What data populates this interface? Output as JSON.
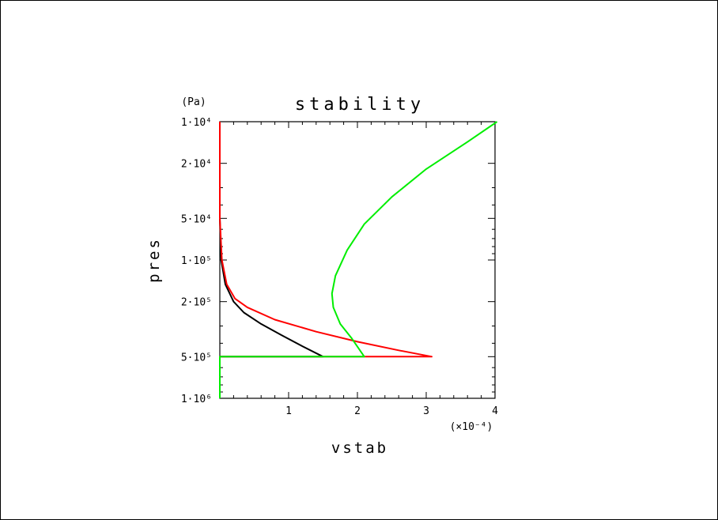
{
  "chart_data": {
    "type": "line",
    "title": "stability",
    "xlabel": "vstab",
    "ylabel": "pres",
    "y_unit_label": "(Pa)",
    "x_scale_label": "(×10⁻⁴)",
    "x_scale_multiplier": 0.0001,
    "xlim": [
      0,
      4
    ],
    "ylim": [
      1000000,
      10000
    ],
    "y_scale": "log",
    "y_inverted": true,
    "grid": false,
    "x_ticks": [
      {
        "value": 1,
        "label": "1"
      },
      {
        "value": 2,
        "label": "2"
      },
      {
        "value": 3,
        "label": "3"
      },
      {
        "value": 4,
        "label": "4"
      }
    ],
    "y_ticks": [
      {
        "value": 10000,
        "label": "1·10⁴"
      },
      {
        "value": 20000,
        "label": "2·10⁴"
      },
      {
        "value": 50000,
        "label": "5·10⁴"
      },
      {
        "value": 100000,
        "label": "1·10⁵"
      },
      {
        "value": 200000,
        "label": "2·10⁵"
      },
      {
        "value": 500000,
        "label": "5·10⁵"
      },
      {
        "value": 1000000,
        "label": "1·10⁶"
      }
    ],
    "series": [
      {
        "color": "#000000",
        "points": [
          [
            0.0,
            10000
          ],
          [
            0.0,
            50000
          ],
          [
            0.02,
            100000
          ],
          [
            0.08,
            150000
          ],
          [
            0.2,
            200000
          ],
          [
            0.35,
            240000
          ],
          [
            0.6,
            290000
          ],
          [
            0.9,
            350000
          ],
          [
            1.2,
            420000
          ],
          [
            1.5,
            500000
          ],
          [
            0.0,
            500000
          ],
          [
            0.0,
            1000000
          ]
        ]
      },
      {
        "color": "#ff0000",
        "points": [
          [
            0.0,
            10000
          ],
          [
            0.0,
            50000
          ],
          [
            0.03,
            100000
          ],
          [
            0.1,
            150000
          ],
          [
            0.22,
            190000
          ],
          [
            0.4,
            220000
          ],
          [
            0.8,
            270000
          ],
          [
            1.4,
            330000
          ],
          [
            2.0,
            390000
          ],
          [
            2.6,
            450000
          ],
          [
            3.08,
            500000
          ],
          [
            0.0,
            500000
          ],
          [
            0.0,
            1000000
          ]
        ]
      },
      {
        "color": "#00ee00",
        "points": [
          [
            4.03,
            10000
          ],
          [
            3.6,
            14000
          ],
          [
            3.0,
            22000
          ],
          [
            2.5,
            35000
          ],
          [
            2.1,
            55000
          ],
          [
            1.85,
            85000
          ],
          [
            1.68,
            130000
          ],
          [
            1.63,
            175000
          ],
          [
            1.65,
            220000
          ],
          [
            1.75,
            290000
          ],
          [
            1.92,
            370000
          ],
          [
            2.1,
            500000
          ],
          [
            0.0,
            500000
          ],
          [
            0.0,
            1000000
          ]
        ]
      }
    ]
  }
}
